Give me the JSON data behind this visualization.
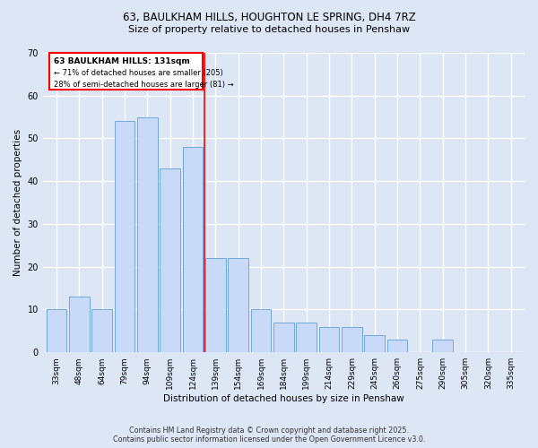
{
  "title1": "63, BAULKHAM HILLS, HOUGHTON LE SPRING, DH4 7RZ",
  "title2": "Size of property relative to detached houses in Penshaw",
  "xlabel": "Distribution of detached houses by size in Penshaw",
  "ylabel": "Number of detached properties",
  "bar_labels": [
    "33sqm",
    "48sqm",
    "64sqm",
    "79sqm",
    "94sqm",
    "109sqm",
    "124sqm",
    "139sqm",
    "154sqm",
    "169sqm",
    "184sqm",
    "199sqm",
    "214sqm",
    "229sqm",
    "245sqm",
    "260sqm",
    "275sqm",
    "290sqm",
    "305sqm",
    "320sqm",
    "335sqm"
  ],
  "bar_values": [
    10,
    13,
    10,
    54,
    55,
    43,
    48,
    22,
    22,
    10,
    7,
    7,
    6,
    6,
    4,
    3,
    0,
    3,
    0,
    0,
    0
  ],
  "bar_color": "#c9daf8",
  "bar_edge_color": "#6fa8dc",
  "ylim": [
    0,
    70
  ],
  "yticks": [
    0,
    10,
    20,
    30,
    40,
    50,
    60,
    70
  ],
  "property_line_x": 6.5,
  "annotation_title": "63 BAULKHAM HILLS: 131sqm",
  "annotation_line1": "← 71% of detached houses are smaller (205)",
  "annotation_line2": "28% of semi-detached houses are larger (81) →",
  "footer1": "Contains HM Land Registry data © Crown copyright and database right 2025.",
  "footer2": "Contains public sector information licensed under the Open Government Licence v3.0.",
  "background_color": "#dce6f5",
  "plot_bg_color": "#dce6f5",
  "grid_color": "#ffffff"
}
